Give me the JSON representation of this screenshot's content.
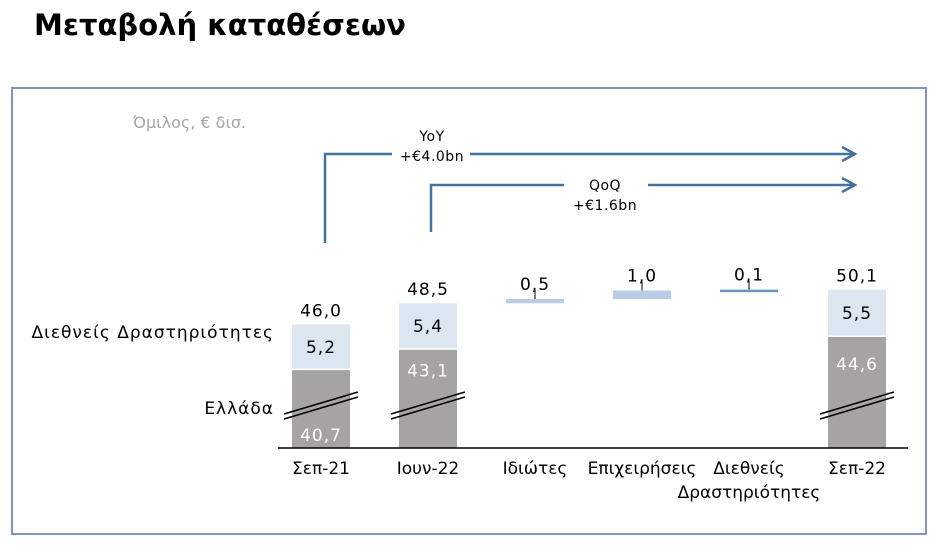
{
  "page": {
    "title": "Μεταβολή καταθέσεων"
  },
  "unit_label": "Όμιλος, € δισ.",
  "colors": {
    "greece": "#a6a4a2",
    "international": "#dce6f1",
    "delta_bar": "#b8cce4",
    "delta_line": "#6a94bf",
    "arrow": "#41719c",
    "frame": "#7f93c7"
  },
  "chart_data": {
    "type": "bar",
    "stacked": true,
    "waterfall": true,
    "categories": [
      "Σεπ-21",
      "Ιουν-22",
      "Ιδιώτες",
      "Επιχειρήσεις",
      "Διεθνείς Δραστηριότητες",
      "Σεπ-22"
    ],
    "segment_labels": [
      "Διεθνείς Δραστηριότητες",
      "Ελλάδα"
    ],
    "totals": [
      {
        "category": "Σεπ-21",
        "greece": 40.7,
        "international": 5.2,
        "total": 46.0,
        "greece_label": "40,7",
        "international_label": "5,2",
        "total_label": "46,0"
      },
      {
        "category": "Ιουν-22",
        "greece": 43.1,
        "international": 5.4,
        "total": 48.5,
        "greece_label": "43,1",
        "international_label": "5,4",
        "total_label": "48,5"
      },
      {
        "category": "Σεπ-22",
        "greece": 44.6,
        "international": 5.5,
        "total": 50.1,
        "greece_label": "44,6",
        "international_label": "5,5",
        "total_label": "50,1"
      }
    ],
    "changes": [
      {
        "category": "Ιδιώτες",
        "value": 0.5,
        "label": "0,5"
      },
      {
        "category": "Επιχειρήσεις",
        "value": 1.0,
        "label": "1,0"
      },
      {
        "category": "Διεθνείς Δραστηριότητες",
        "value": 0.1,
        "label": "0,1"
      }
    ],
    "axis_break": true,
    "annotations": [
      {
        "id": "yoy",
        "line1": "YoY",
        "line2": "+€4.0bn",
        "from": "Σεπ-21",
        "to": "Σεπ-22"
      },
      {
        "id": "qoq",
        "line1": "QoQ",
        "line2": "+€1.6bn",
        "from": "Ιουν-22",
        "to": "Σεπ-22"
      }
    ]
  }
}
